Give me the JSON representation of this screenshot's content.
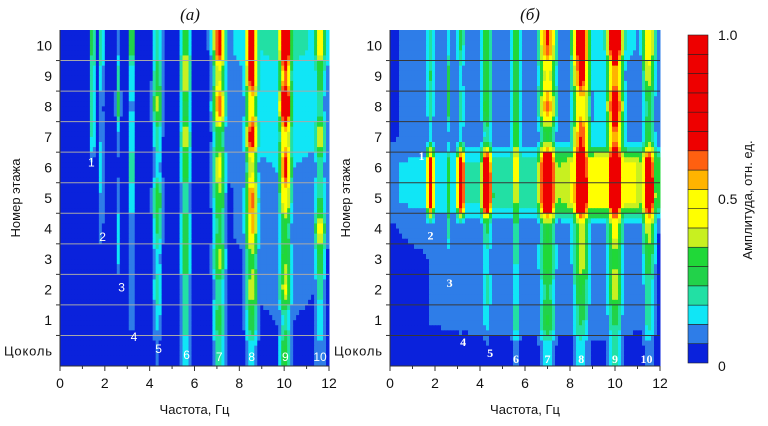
{
  "chart_data": {
    "type": "heatmap",
    "colorbar": {
      "label": "Амплитуда, отн. ед.",
      "ticks": [
        "0",
        "0.5",
        "1.0"
      ],
      "range": [
        0,
        1
      ],
      "colors": [
        "#0a22dc",
        "#2e7de8",
        "#10e6f6",
        "#22e0a4",
        "#22d24a",
        "#20d838",
        "#c8f020",
        "#ffff00",
        "#ffff00",
        "#ffb400",
        "#ff6010",
        "#ee0000",
        "#ee0000",
        "#ee0000",
        "#ee0000",
        "#ee0000",
        "#ee0000"
      ]
    },
    "floors": [
      "Цоколь",
      "1",
      "2",
      "3",
      "4",
      "5",
      "6",
      "7",
      "8",
      "9",
      "10"
    ],
    "xlabel": "Частота, Гц",
    "ylabel": "Номер этажа",
    "xticks": [
      "0",
      "2",
      "4",
      "6",
      "8",
      "10",
      "12"
    ],
    "xlim": [
      0,
      12
    ],
    "panels": [
      {
        "title": "(а)",
        "grid_color": "#a8a8a8",
        "modes": [
          {
            "f": 1.45,
            "w": 0.1,
            "amp": [
              0,
              0,
              0,
              0,
              0,
              0,
              0.06,
              0.2,
              0.24,
              0.24,
              0.28
            ]
          },
          {
            "f": 1.85,
            "w": 0.08,
            "amp": [
              0,
              0,
              0,
              0.05,
              0.1,
              0.14,
              0.18,
              0.14,
              0.1,
              0.18,
              0.28
            ]
          },
          {
            "f": 2.6,
            "w": 0.08,
            "amp": [
              0,
              0,
              0,
              0.12,
              0.14,
              0.1,
              0.05,
              0.1,
              0.28,
              0.2,
              0.1
            ]
          },
          {
            "f": 3.2,
            "w": 0.1,
            "amp": [
              0,
              0.1,
              0.14,
              0.14,
              0.1,
              0.2,
              0.24,
              0.2,
              0.14,
              0.2,
              0.32
            ]
          },
          {
            "f": 4.35,
            "w": 0.16,
            "amp": [
              0.06,
              0.15,
              0.2,
              0.15,
              0.25,
              0.33,
              0.15,
              0.2,
              0.38,
              0.28,
              0.2
            ]
          },
          {
            "f": 5.6,
            "w": 0.16,
            "amp": [
              0.15,
              0.24,
              0.2,
              0.3,
              0.3,
              0.2,
              0.35,
              0.4,
              0.3,
              0.45,
              0.35
            ]
          },
          {
            "f": 7.1,
            "w": 0.2,
            "amp": [
              0.2,
              0.3,
              0.2,
              0.4,
              0.25,
              0.35,
              0.45,
              0.3,
              0.65,
              0.4,
              0.72
            ]
          },
          {
            "f": 8.55,
            "w": 0.2,
            "amp": [
              0.16,
              0.3,
              0.4,
              0.35,
              0.55,
              0.62,
              0.4,
              0.72,
              0.45,
              0.72,
              0.8
            ]
          },
          {
            "f": 10.05,
            "w": 0.2,
            "amp": [
              0.3,
              0.2,
              0.42,
              0.35,
              0.3,
              0.5,
              0.68,
              0.5,
              0.92,
              0.6,
              0.95
            ]
          },
          {
            "f": 11.6,
            "w": 0.18,
            "amp": [
              0.12,
              0.15,
              0.2,
              0.3,
              0.45,
              0.25,
              0.2,
              0.42,
              0.2,
              0.3,
              0.5
            ]
          },
          {
            "f": 10.0,
            "w": 2.2,
            "amp": [
              0.05,
              0.06,
              0.07,
              0.08,
              0.1,
              0.1,
              0.12,
              0.15,
              0.16,
              0.16,
              0.2
            ]
          }
        ],
        "mode_labels": [
          {
            "text": "1",
            "f": 1.4,
            "floor": 6.2
          },
          {
            "text": "2",
            "f": 1.9,
            "floor": 3.76
          },
          {
            "text": "3",
            "f": 2.75,
            "floor": 2.1
          },
          {
            "text": "4",
            "f": 3.3,
            "floor": 0.48
          },
          {
            "text": "5",
            "f": 4.4,
            "floor": 0.09
          },
          {
            "text": "6",
            "f": 5.65,
            "floor": -0.1
          },
          {
            "text": "7",
            "f": 7.1,
            "floor": -0.17
          },
          {
            "text": "8",
            "f": 8.55,
            "floor": -0.17
          },
          {
            "text": "9",
            "f": 10.05,
            "floor": -0.17
          },
          {
            "text": "10",
            "f": 11.6,
            "floor": -0.17
          }
        ]
      },
      {
        "title": "(б)",
        "grid_color": "#383838",
        "modes": [
          {
            "f": 1.8,
            "w": 0.14,
            "amp": [
              0,
              0,
              0,
              0.05,
              0.1,
              0.8,
              0.75,
              0.15,
              0.2,
              0.24,
              0.2
            ]
          },
          {
            "f": 2.6,
            "w": 0.1,
            "amp": [
              0,
              0,
              0.05,
              0.1,
              0.2,
              0.3,
              0.3,
              0.1,
              0.28,
              0.28,
              0.15
            ]
          },
          {
            "f": 3.15,
            "w": 0.14,
            "amp": [
              0,
              0.1,
              0.1,
              0.1,
              0.1,
              0.9,
              0.85,
              0.15,
              0.2,
              0.15,
              0.25
            ]
          },
          {
            "f": 4.3,
            "w": 0.18,
            "amp": [
              0.05,
              0.15,
              0.2,
              0.15,
              0.25,
              0.95,
              0.9,
              0.2,
              0.35,
              0.3,
              0.35
            ]
          },
          {
            "f": 5.6,
            "w": 0.15,
            "amp": [
              0.1,
              0.24,
              0.15,
              0.2,
              0.25,
              0.4,
              0.5,
              0.35,
              0.3,
              0.3,
              0.35
            ]
          },
          {
            "f": 7.0,
            "w": 0.28,
            "amp": [
              0.15,
              0.3,
              0.25,
              0.35,
              0.3,
              1,
              1,
              0.3,
              0.6,
              0.45,
              0.65
            ]
          },
          {
            "f": 8.5,
            "w": 0.28,
            "amp": [
              0.15,
              0.25,
              0.3,
              0.4,
              0.4,
              1,
              0.9,
              0.65,
              0.5,
              0.7,
              0.8
            ]
          },
          {
            "f": 10.0,
            "w": 0.26,
            "amp": [
              0.2,
              0.25,
              0.4,
              0.35,
              0.45,
              0.95,
              1,
              0.6,
              0.82,
              0.55,
              0.9
            ]
          },
          {
            "f": 11.5,
            "w": 0.22,
            "amp": [
              0.1,
              0.2,
              0.2,
              0.3,
              0.4,
              0.9,
              0.85,
              0.3,
              0.25,
              0.4,
              0.5
            ]
          },
          {
            "f": 9.5,
            "w": 2.4,
            "amp": [
              0.05,
              0.08,
              0.08,
              0.08,
              0.1,
              0.5,
              0.5,
              0.12,
              0.12,
              0.12,
              0.14
            ]
          },
          {
            "f": 6.0,
            "w": 5.5,
            "amp": [
              0.04,
              0.08,
              0.08,
              0.08,
              0.1,
              0.2,
              0.2,
              0.1,
              0.1,
              0.1,
              0.1
            ]
          }
        ],
        "mode_labels": [
          {
            "text": "1",
            "f": 1.4,
            "floor": 6.4
          },
          {
            "text": "2",
            "f": 1.8,
            "floor": 3.8
          },
          {
            "text": "3",
            "f": 2.65,
            "floor": 2.25
          },
          {
            "text": "4",
            "f": 3.25,
            "floor": 0.32
          },
          {
            "text": "5",
            "f": 4.45,
            "floor": -0.04
          },
          {
            "text": "6",
            "f": 5.6,
            "floor": -0.24
          },
          {
            "text": "7",
            "f": 7.0,
            "floor": -0.24
          },
          {
            "text": "8",
            "f": 8.5,
            "floor": -0.24
          },
          {
            "text": "9",
            "f": 10.0,
            "floor": -0.24
          },
          {
            "text": "10",
            "f": 11.4,
            "floor": -0.24
          }
        ]
      }
    ]
  }
}
